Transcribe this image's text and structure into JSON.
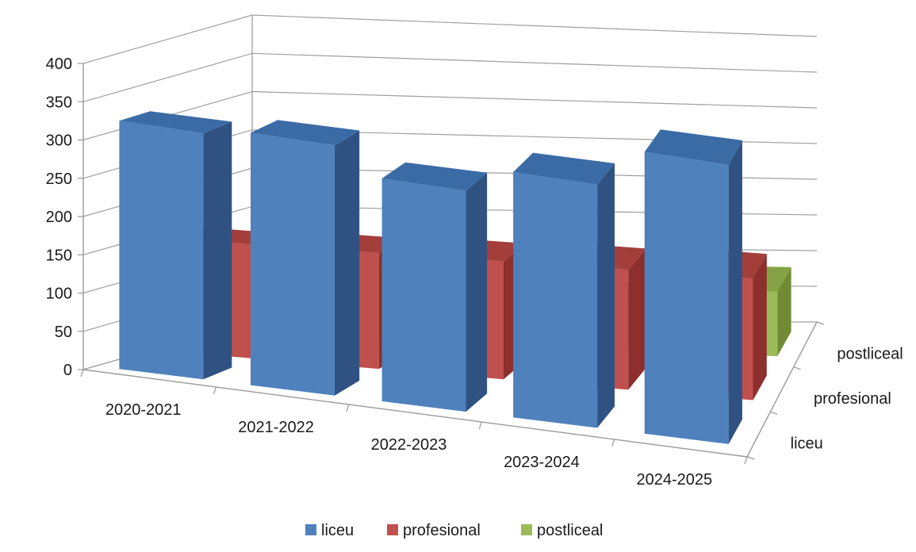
{
  "chart_data": {
    "type": "bar",
    "subtype": "3d-column",
    "categories": [
      "2020-2021",
      "2021-2022",
      "2022-2023",
      "2023-2024",
      "2024-2025"
    ],
    "series": [
      {
        "name": "liceu",
        "values": [
          325,
          335,
          300,
          335,
          390
        ],
        "color": "#4F81BD",
        "side_color": "#2F5283",
        "top_color": "#3B6BA5"
      },
      {
        "name": "profesional",
        "values": [
          150,
          155,
          160,
          165,
          170
        ],
        "color": "#C0504D",
        "side_color": "#8C2F2D",
        "top_color": "#A33E3B"
      },
      {
        "name": "postliceal",
        "values": [
          0,
          90,
          85,
          65,
          90
        ],
        "color": "#9BBB59",
        "side_color": "#6F8C34",
        "top_color": "#84A346"
      }
    ],
    "depth_labels": [
      "liceu",
      "profesional",
      "postliceal"
    ],
    "y_ticks": [
      0,
      50,
      100,
      150,
      200,
      250,
      300,
      350,
      400
    ],
    "ylim": [
      0,
      400
    ],
    "grid": true,
    "legend_position": "bottom",
    "title": "",
    "xlabel": "",
    "ylabel": ""
  }
}
